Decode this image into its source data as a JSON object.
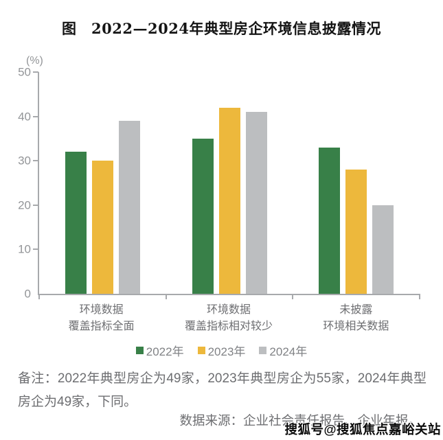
{
  "chart_data": {
    "type": "bar",
    "title": "图　2022—2024年典型房企环境信息披露情况",
    "unit_label": "(%)",
    "categories": [
      "环境数据\n覆盖指标全面",
      "环境数据\n覆盖指标相对较少",
      "未披露\n环境相关数据"
    ],
    "series": [
      {
        "name": "2022年",
        "color": "#388048",
        "values": [
          32,
          35,
          33
        ]
      },
      {
        "name": "2023年",
        "color": "#EDB83C",
        "values": [
          30,
          42,
          28
        ]
      },
      {
        "name": "2024年",
        "color": "#BCBEC0",
        "values": [
          39,
          41,
          20
        ]
      }
    ],
    "ylim": [
      0,
      50
    ],
    "yticks": [
      0,
      10,
      20,
      30,
      40,
      50
    ],
    "grid": false,
    "legend_position": "bottom"
  },
  "note": "备注：2022年典型房企为49家，2023年典型房企为55家，2024年典型房企为49家，下同。",
  "source": "数据来源：企业社会责任报告、企业年报。",
  "watermark": "搜狐号@搜狐焦点嘉峪关站",
  "colors": {
    "axis": "#A7A9AC",
    "tick_text": "#939598",
    "label_text": "#6D6E71"
  }
}
